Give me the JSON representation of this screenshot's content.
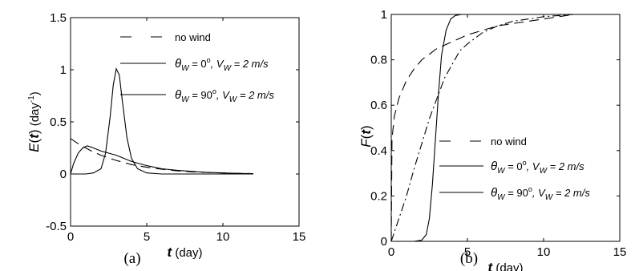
{
  "chart_data": [
    {
      "type": "line",
      "panel_label": "(a)",
      "ylabel": "E(t) (day-1)",
      "ylabel_parts": {
        "italic": "E",
        "open": "(",
        "var": "t",
        "close": ")",
        "unit": " (day",
        "sup": "-1",
        "end": ")"
      },
      "xlabel": "t (day)",
      "xlabel_parts": {
        "var": "t",
        "unit": " (day)"
      },
      "xlim": [
        0,
        15
      ],
      "ylim": [
        -0.5,
        1.5
      ],
      "xticks": [
        "0",
        "5",
        "10",
        "15"
      ],
      "yticks": [
        "-0.5",
        "0",
        "0.5",
        "1",
        "1.5"
      ],
      "legend_position": "top-right",
      "series": [
        {
          "name": "no wind",
          "style": "dashed",
          "x": [
            0,
            0.1,
            0.3,
            0.6,
            1,
            1.5,
            2,
            3,
            4,
            5,
            6,
            7,
            8,
            9,
            10,
            11,
            12
          ],
          "y": [
            0.34,
            0.33,
            0.31,
            0.28,
            0.25,
            0.21,
            0.18,
            0.13,
            0.09,
            0.065,
            0.045,
            0.03,
            0.02,
            0.015,
            0.01,
            0.006,
            0.004
          ]
        },
        {
          "name": "θW = 0°, VW = 2 m/s",
          "style": "solid",
          "x": [
            0,
            0.2,
            0.5,
            0.8,
            1.1,
            1.5,
            2,
            2.5,
            3,
            3.5,
            4,
            5,
            6,
            7,
            8,
            9,
            10,
            11,
            12
          ],
          "y": [
            0,
            0.1,
            0.2,
            0.25,
            0.27,
            0.25,
            0.22,
            0.2,
            0.18,
            0.15,
            0.12,
            0.08,
            0.05,
            0.035,
            0.025,
            0.015,
            0.01,
            0.005,
            0.003
          ]
        },
        {
          "name": "θW = 90°, VW = 2 m/s",
          "style": "solid",
          "x": [
            0,
            1,
            1.5,
            2,
            2.3,
            2.6,
            2.8,
            3,
            3.2,
            3.4,
            3.7,
            4,
            4.4,
            5,
            6,
            8,
            12
          ],
          "y": [
            0,
            0,
            0.01,
            0.05,
            0.2,
            0.55,
            0.85,
            1.01,
            0.95,
            0.7,
            0.35,
            0.15,
            0.05,
            0.01,
            0,
            0,
            0
          ]
        }
      ],
      "legend_entries": [
        {
          "lines": [
            "no wind"
          ]
        },
        {
          "lines": [
            "θ",
            "W",
            " = 0",
            "o",
            ", V",
            "W",
            " = 2 m/s"
          ]
        },
        {
          "lines": [
            "θ",
            "W",
            " = 90",
            "o",
            ", V",
            "W",
            " = 2 m/s"
          ]
        }
      ]
    },
    {
      "type": "line",
      "panel_label": "(b)",
      "ylabel": "F(t)",
      "ylabel_parts": {
        "italic": "F",
        "open": "(",
        "var": "t",
        "close": ")"
      },
      "xlabel": "t (day)",
      "xlabel_parts": {
        "var": "t",
        "unit": " (day)"
      },
      "xlim": [
        0,
        15
      ],
      "ylim": [
        0,
        1
      ],
      "xticks": [
        "0",
        "5",
        "10",
        "15"
      ],
      "yticks": [
        "0",
        "0.2",
        "0.4",
        "0.6",
        "0.8",
        "1"
      ],
      "legend_position": "middle-right",
      "series": [
        {
          "name": "no wind",
          "style": "dashed",
          "x": [
            0,
            0.05,
            0.2,
            0.5,
            1,
            1.5,
            2,
            3,
            4,
            5,
            6,
            7,
            8,
            9,
            10,
            11,
            12
          ],
          "y": [
            0,
            0.45,
            0.55,
            0.63,
            0.71,
            0.76,
            0.8,
            0.85,
            0.88,
            0.91,
            0.93,
            0.95,
            0.96,
            0.97,
            0.98,
            0.99,
            1
          ]
        },
        {
          "name": "θW = 0°, VW = 2 m/s",
          "style": "dashdot",
          "x": [
            0,
            0.5,
            1,
            1.5,
            2,
            2.5,
            3,
            3.5,
            4,
            4.5,
            5,
            6,
            7,
            8,
            9,
            10,
            11,
            12
          ],
          "y": [
            0,
            0.1,
            0.2,
            0.32,
            0.43,
            0.54,
            0.63,
            0.72,
            0.78,
            0.84,
            0.87,
            0.92,
            0.95,
            0.97,
            0.98,
            0.99,
            0.995,
            1
          ]
        },
        {
          "name": "θW = 90°, VW = 2 m/s",
          "style": "solid",
          "x": [
            0,
            1.5,
            2,
            2.3,
            2.5,
            2.7,
            2.9,
            3.1,
            3.3,
            3.6,
            3.9,
            4.2,
            4.6,
            5,
            12
          ],
          "y": [
            0,
            0,
            0.005,
            0.03,
            0.1,
            0.25,
            0.45,
            0.65,
            0.82,
            0.93,
            0.98,
            0.995,
            1,
            1,
            1
          ]
        }
      ],
      "legend_entries": [
        {
          "lines": [
            "no wind"
          ]
        },
        {
          "lines": [
            "θ",
            "W",
            " = 0",
            "o",
            ", V",
            "W",
            " = 2 m/s"
          ]
        },
        {
          "lines": [
            "θ",
            "W",
            " = 90",
            "o",
            ", V",
            "W",
            " = 2 m/s"
          ]
        }
      ]
    }
  ]
}
